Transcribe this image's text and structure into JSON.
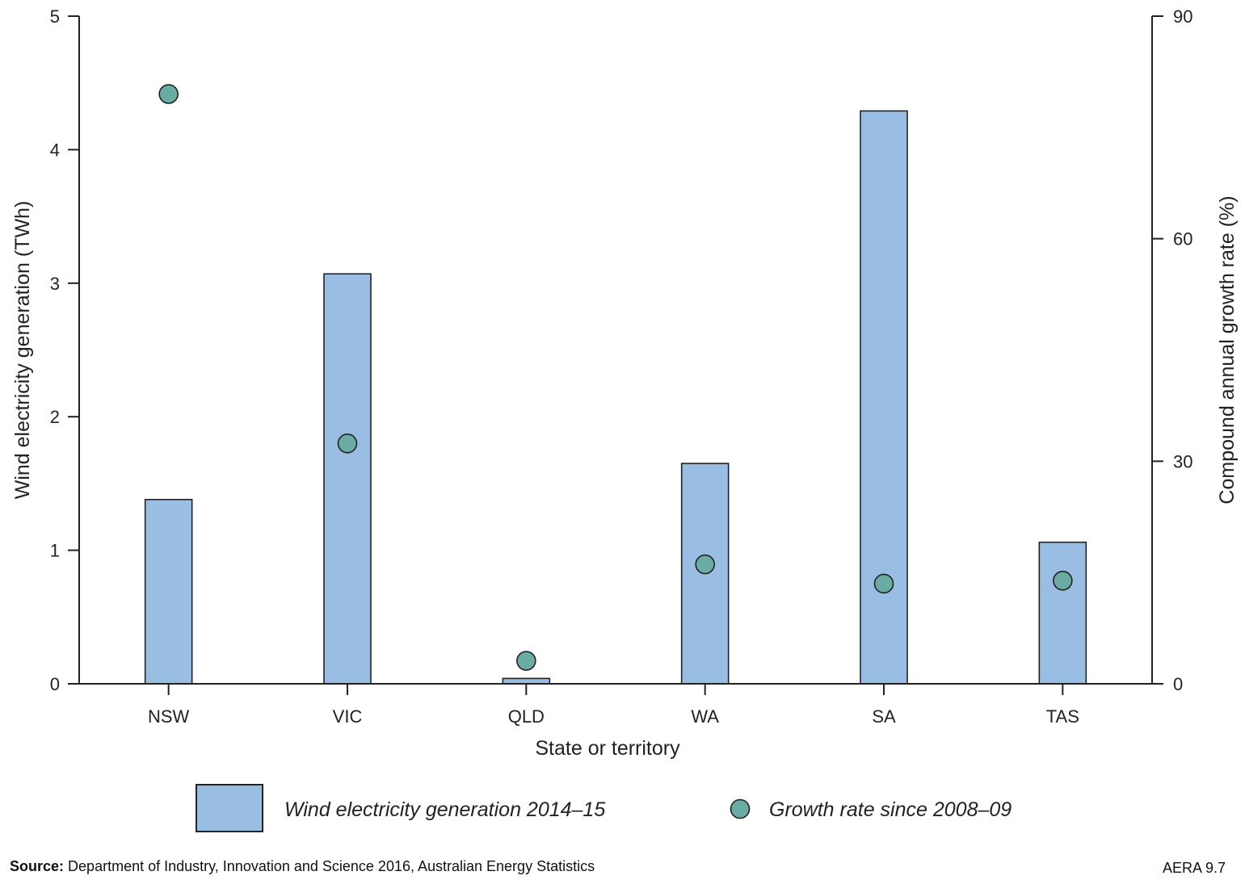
{
  "chart_data": {
    "type": "bar",
    "categories": [
      "NSW",
      "VIC",
      "QLD",
      "WA",
      "SA",
      "TAS"
    ],
    "series": [
      {
        "name": "Wind electricity generation 2014–15",
        "kind": "bar",
        "axis": "left",
        "values": [
          1.38,
          3.07,
          0.04,
          1.65,
          4.29,
          1.06
        ]
      },
      {
        "name": "Growth rate since 2008–09",
        "kind": "scatter",
        "axis": "right",
        "values": [
          79.5,
          32.4,
          3.1,
          16.1,
          13.5,
          13.9
        ]
      }
    ],
    "xlabel": "State or territory",
    "ylabel": "Wind electricity generation (TWh)",
    "y2label": "Compound annual growth rate (%)",
    "ylim": [
      0,
      5
    ],
    "y2lim": [
      0,
      90
    ],
    "yticks": [
      "0",
      "1",
      "2",
      "3",
      "4",
      "5"
    ],
    "y2ticks": [
      "0",
      "30",
      "60",
      "90"
    ],
    "legend": "bottom",
    "colors": {
      "bar": "#9abde4",
      "dot": "#6aaba4",
      "stroke": "#222222"
    }
  },
  "footer": {
    "source_label": "Source:",
    "source_text": "Department of Industry, Innovation and Science 2016, Australian Energy Statistics",
    "figure_code": "AERA 9.7"
  }
}
